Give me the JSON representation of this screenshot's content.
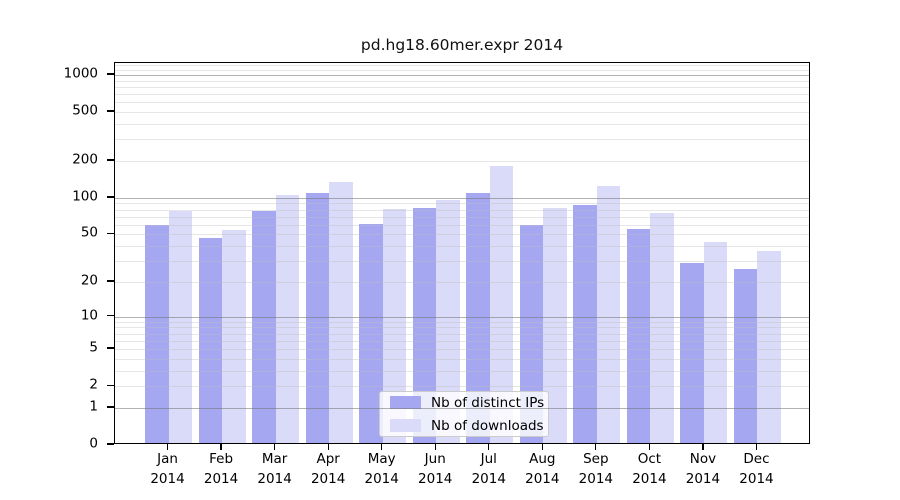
{
  "title": "pd.hg18.60mer.expr 2014",
  "legend": {
    "items": [
      {
        "label": "Nb of distinct IPs",
        "color": "#a5a8f0"
      },
      {
        "label": "Nb of downloads",
        "color": "#d9dbf9"
      }
    ]
  },
  "y_axis": {
    "tick_labels": [
      "1000",
      "500",
      "200",
      "100",
      "50",
      "20",
      "10",
      "5",
      "2",
      "1",
      "0"
    ],
    "tick_values": [
      1000,
      500,
      200,
      100,
      50,
      20,
      10,
      5,
      2,
      1,
      0
    ],
    "major_values": [
      1,
      10,
      100,
      1000
    ],
    "minor_values": [
      2,
      3,
      4,
      5,
      6,
      7,
      8,
      9,
      20,
      30,
      40,
      50,
      60,
      70,
      80,
      90,
      200,
      300,
      400,
      500,
      600,
      700,
      800,
      900,
      1100,
      1200
    ],
    "log_max": 3.098
  },
  "chart_data": {
    "type": "bar",
    "title": "pd.hg18.60mer.expr 2014",
    "categories": [
      "Jan 2014",
      "Feb 2014",
      "Mar 2014",
      "Apr 2014",
      "May 2014",
      "Jun 2014",
      "Jul 2014",
      "Aug 2014",
      "Sep 2014",
      "Oct 2014",
      "Nov 2014",
      "Dec 2014"
    ],
    "series": [
      {
        "name": "Nb of distinct IPs",
        "color": "#a5a8f0",
        "values": [
          58,
          45,
          75,
          106,
          59,
          80,
          105,
          58,
          84,
          53,
          28,
          25
        ]
      },
      {
        "name": "Nb of downloads",
        "color": "#d9dbf9",
        "values": [
          75,
          52,
          102,
          131,
          78,
          92,
          174,
          79,
          120,
          73,
          42,
          35
        ]
      }
    ],
    "xlabel": "",
    "ylabel": "",
    "y_scale": "log10(1+v)",
    "y_ticks": [
      0,
      1,
      2,
      5,
      10,
      20,
      50,
      100,
      200,
      500,
      1000
    ],
    "ylim": [
      0,
      1253
    ],
    "grid": true,
    "grid_on_top": true,
    "legend_position": "lower center"
  }
}
